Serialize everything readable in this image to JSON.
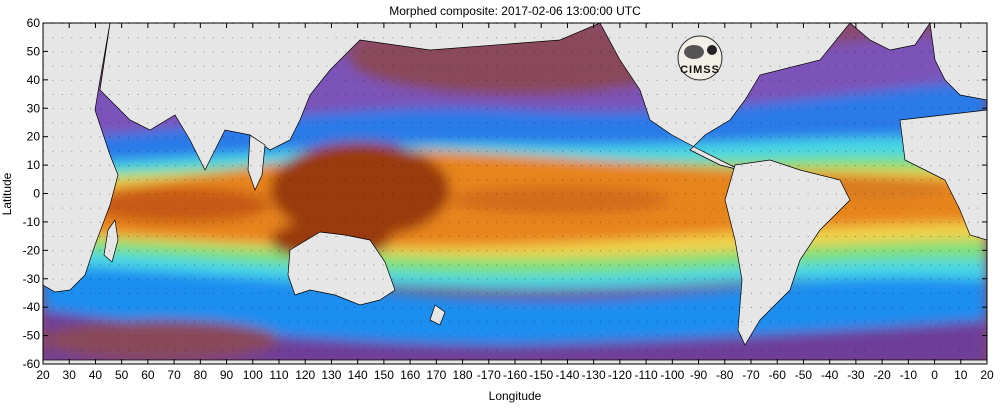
{
  "title": "Morphed composite: 2017-02-06 13:00:00 UTC",
  "xlabel": "Longitude",
  "ylabel": "Latitude",
  "x_ticks": [
    "20",
    "30",
    "40",
    "50",
    "60",
    "70",
    "80",
    "90",
    "100",
    "110",
    "120",
    "130",
    "140",
    "150",
    "160",
    "170",
    "180",
    "-170",
    "-160",
    "-150",
    "-140",
    "-130",
    "-120",
    "-110",
    "-100",
    "-90",
    "-80",
    "-70",
    "-60",
    "-50",
    "-40",
    "-30",
    "-20",
    "-10",
    "0",
    "10",
    "20"
  ],
  "y_ticks": [
    "60",
    "50",
    "40",
    "30",
    "20",
    "10",
    "0",
    "-10",
    "-20",
    "-30",
    "-40",
    "-50",
    "-60"
  ],
  "logo_text": "CIMSS",
  "colors": {
    "land": "#e6e6e6",
    "dry": "#7a3a78",
    "low": "#9a5a6a",
    "mid_blue": "#2a7ae8",
    "cyan": "#46d7e6",
    "green": "#7fe07a",
    "yellow": "#f0e04a",
    "orange": "#e8841e",
    "wet": "#9a3a10"
  }
}
